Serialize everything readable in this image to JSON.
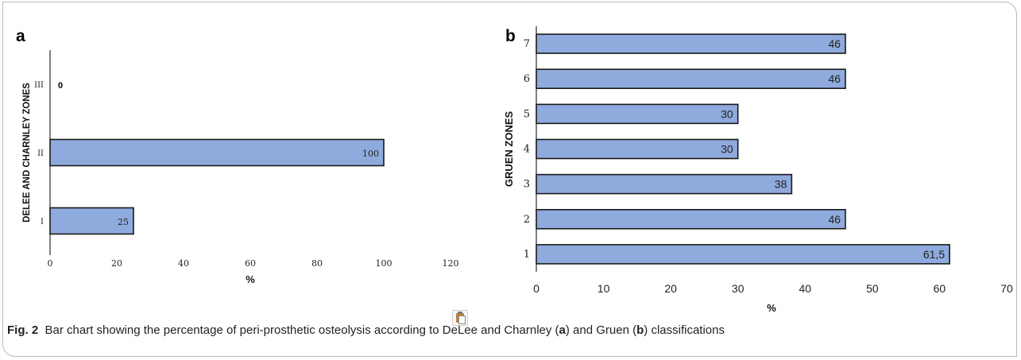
{
  "chart_data": [
    {
      "type": "bar",
      "orientation": "horizontal",
      "panel_label": "a",
      "categories": [
        "I",
        "II",
        "III"
      ],
      "values": [
        25,
        100,
        0
      ],
      "data_labels": [
        "25",
        "100",
        "0"
      ],
      "xlabel": "%",
      "ylabel": "DELEE AND CHARNLEY ZONES",
      "xlim": [
        0,
        120
      ],
      "xticks": [
        "0",
        "20",
        "40",
        "60",
        "80",
        "100",
        "120"
      ],
      "grid": false,
      "bar_color": "#8faadc"
    },
    {
      "type": "bar",
      "orientation": "horizontal",
      "panel_label": "b",
      "categories": [
        "1",
        "2",
        "3",
        "4",
        "5",
        "6",
        "7"
      ],
      "values": [
        61.5,
        46,
        38,
        30,
        30,
        46,
        46
      ],
      "data_labels": [
        "61,5",
        "46",
        "38",
        "30",
        "30",
        "46",
        "46"
      ],
      "xlabel": "%",
      "ylabel": "GRUEN ZONES",
      "xlim": [
        0,
        70
      ],
      "xticks": [
        "0",
        "10",
        "20",
        "30",
        "40",
        "50",
        "60",
        "70"
      ],
      "grid": false,
      "bar_color": "#8faadc"
    }
  ],
  "caption": {
    "label": "Fig. 2",
    "text_before_a": "Bar chart showing the percentage of peri-prosthetic osteolysis according to DeLee and Charnley (",
    "label_a": "a",
    "text_between": ") and Gruen (",
    "label_b": "b",
    "text_after_b": ") classifications"
  },
  "icons": {
    "paste": "clipboard-icon"
  }
}
